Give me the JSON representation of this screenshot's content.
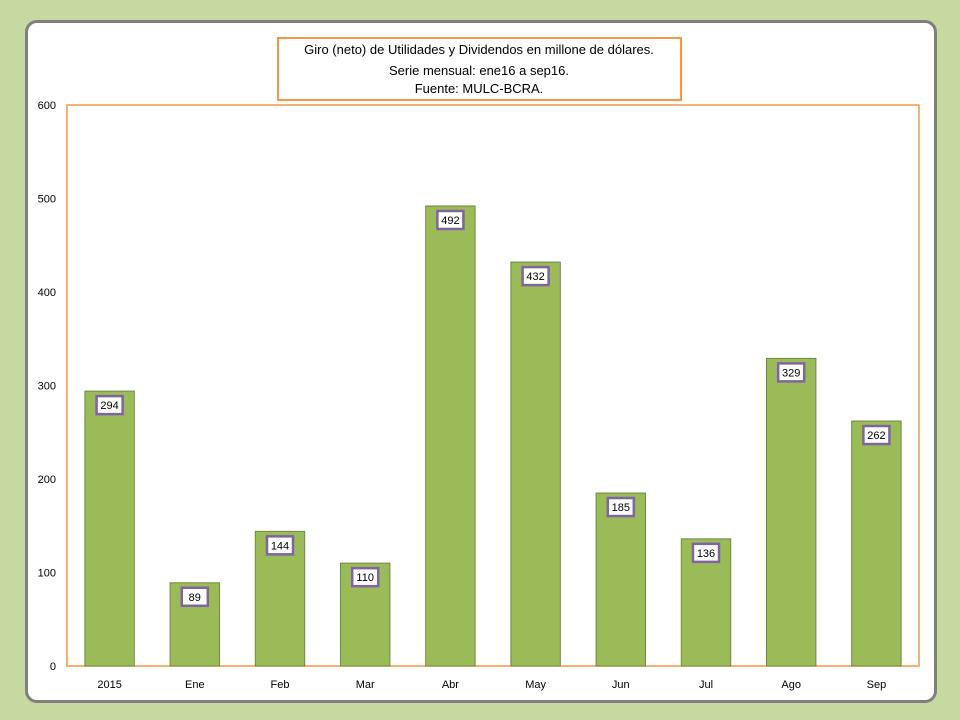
{
  "chart_data": {
    "type": "bar",
    "title": [
      "Giro (neto) de Utilidades y Dividendos en millone de dólares.",
      "Serie mensual: ene16 a sep16.",
      "Fuente: MULC-BCRA."
    ],
    "categories": [
      "2015",
      "Ene",
      "Feb",
      "Mar",
      "Abr",
      "May",
      "Jun",
      "Jul",
      "Ago",
      "Sep"
    ],
    "values": [
      294,
      89,
      144,
      110,
      492,
      432,
      185,
      136,
      329,
      262
    ],
    "ylim": [
      0,
      600
    ],
    "yticks": [
      0,
      100,
      200,
      300,
      400,
      500,
      600
    ],
    "xlabel": "",
    "ylabel": "",
    "grid": false,
    "legend": "none"
  },
  "colors": {
    "bar_fill": "#9bbb59",
    "bar_stroke": "#71893f",
    "plot_border": "#f79646",
    "title_border": "#f79646",
    "label_border": "#8064a2",
    "background": "#c5d9a0",
    "panel_border": "#7f7f7f"
  }
}
